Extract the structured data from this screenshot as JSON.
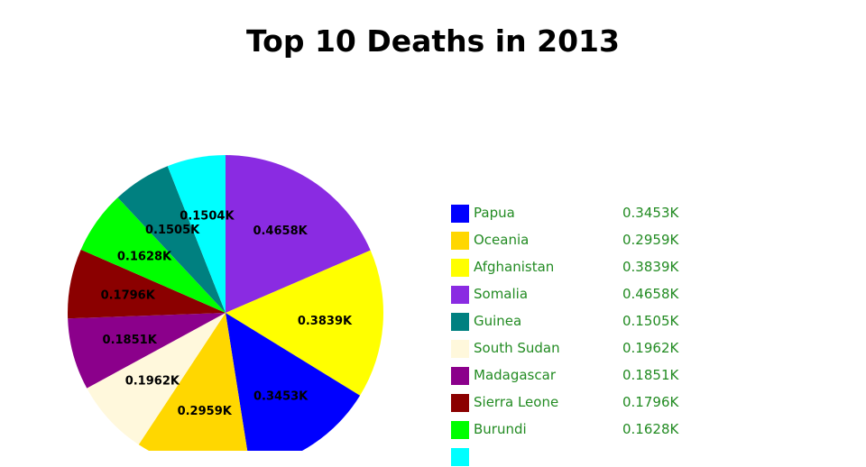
{
  "chart_data": {
    "type": "pie",
    "title": "Top 10 Deaths in 2013",
    "slices": [
      {
        "name": "Somalia",
        "value": 0.4658,
        "label": "0.4658K",
        "color": "#8a2be2"
      },
      {
        "name": "Afghanistan",
        "value": 0.3839,
        "label": "0.3839K",
        "color": "#ffff00"
      },
      {
        "name": "Papua",
        "value": 0.3453,
        "label": "0.3453K",
        "color": "#0000ff"
      },
      {
        "name": "Oceania",
        "value": 0.2959,
        "label": "0.2959K",
        "color": "#ffd700"
      },
      {
        "name": "South Sudan",
        "value": 0.1962,
        "label": "0.1962K",
        "color": "#fff8dc"
      },
      {
        "name": "Madagascar",
        "value": 0.1851,
        "label": "0.1851K",
        "color": "#8b008b"
      },
      {
        "name": "Sierra Leone",
        "value": 0.1796,
        "label": "0.1796K",
        "color": "#8b0000"
      },
      {
        "name": "Burundi",
        "value": 0.1628,
        "label": "0.1628K",
        "color": "#00ff00"
      },
      {
        "name": "Guinea",
        "value": 0.1505,
        "label": "0.1505K",
        "color": "#008080"
      },
      {
        "name": "",
        "value": 0.1504,
        "label": "0.1504K",
        "color": "#00ffff"
      }
    ],
    "legend": [
      {
        "name": "Papua",
        "value": "0.3453K",
        "color": "#0000ff"
      },
      {
        "name": "Oceania",
        "value": "0.2959K",
        "color": "#ffd700"
      },
      {
        "name": "Afghanistan",
        "value": "0.3839K",
        "color": "#ffff00"
      },
      {
        "name": "Somalia",
        "value": "0.4658K",
        "color": "#8a2be2"
      },
      {
        "name": "Guinea",
        "value": "0.1505K",
        "color": "#008080"
      },
      {
        "name": "South Sudan",
        "value": "0.1962K",
        "color": "#fff8dc"
      },
      {
        "name": "Madagascar",
        "value": "0.1851K",
        "color": "#8b008b"
      },
      {
        "name": "Sierra Leone",
        "value": "0.1796K",
        "color": "#8b0000"
      },
      {
        "name": "Burundi",
        "value": "0.1628K",
        "color": "#00ff00"
      },
      {
        "name": "",
        "value": "",
        "color": "#00ffff"
      }
    ],
    "legend_position": "right",
    "unit_suffix": "K"
  }
}
